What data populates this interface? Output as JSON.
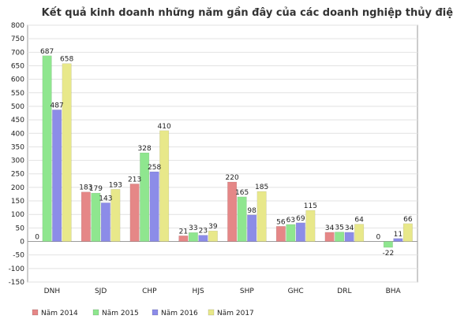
{
  "chart_data": {
    "type": "bar",
    "title": "Kết quả kinh doanh những năm gần đây của các doanh nghiệp thủy điện",
    "xlabel": "",
    "ylabel": "",
    "ylim": [
      -150,
      800
    ],
    "yticks": [
      -150,
      -100,
      -50,
      0,
      50,
      100,
      150,
      200,
      250,
      300,
      350,
      400,
      450,
      500,
      550,
      600,
      650,
      700,
      750,
      800
    ],
    "grid": true,
    "legend_position": "bottom",
    "categories": [
      "DNH",
      "SJD",
      "CHP",
      "HJS",
      "SHP",
      "GHC",
      "DRL",
      "BHA"
    ],
    "series": [
      {
        "name": "Năm 2014",
        "color": "#e58787",
        "values": [
          0,
          183,
          213,
          21,
          220,
          56,
          34,
          0
        ]
      },
      {
        "name": "Năm 2015",
        "color": "#8fe68f",
        "values": [
          687,
          179,
          328,
          33,
          165,
          63,
          35,
          -22
        ]
      },
      {
        "name": "Năm 2016",
        "color": "#8c8ce8",
        "values": [
          487,
          143,
          258,
          23,
          98,
          69,
          34,
          11
        ]
      },
      {
        "name": "Năm 2017",
        "color": "#e8e88a",
        "values": [
          658,
          193,
          410,
          39,
          185,
          115,
          64,
          66
        ]
      }
    ]
  }
}
